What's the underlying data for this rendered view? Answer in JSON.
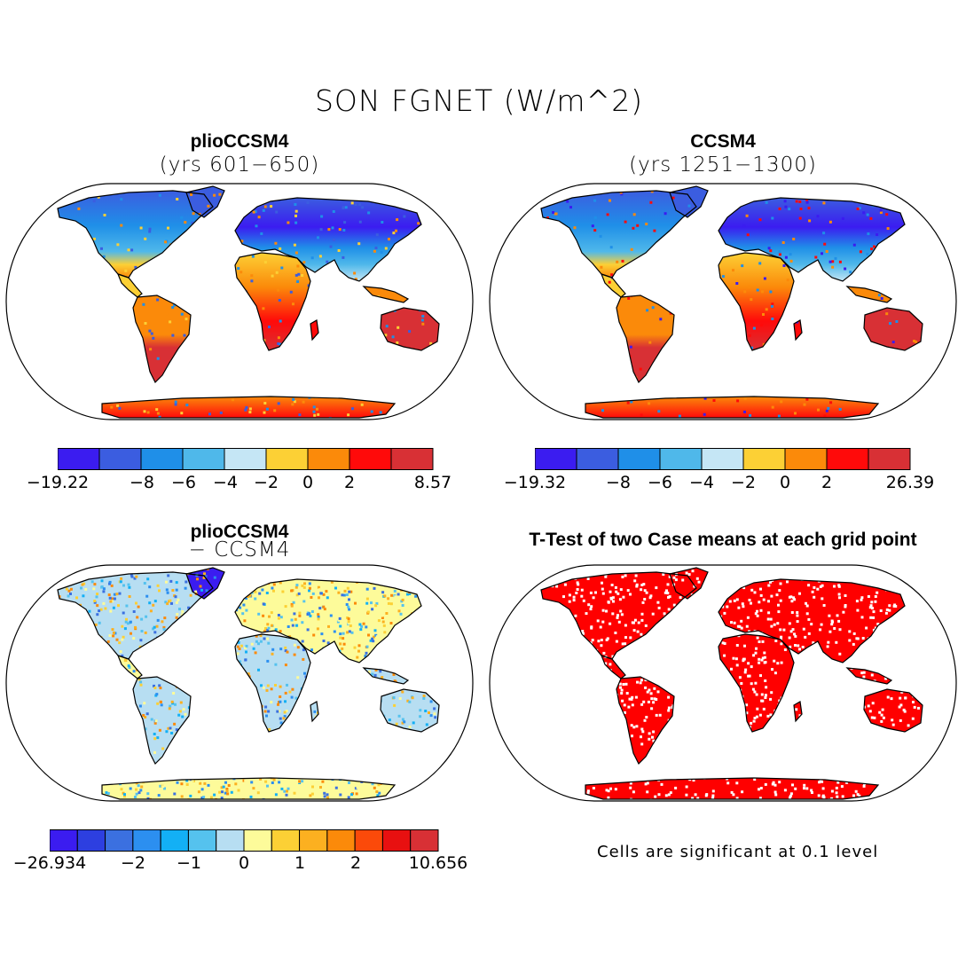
{
  "figure_title": "SON FGNET (W/m^2)",
  "colors": {
    "scale9": [
      "#3b1cf0",
      "#3b5de0",
      "#1f8fe8",
      "#4fb8ea",
      "#c5e6f5",
      "#fcd035",
      "#fb8a0a",
      "#ff0a0a",
      "#d83035"
    ],
    "scale14": [
      "#3b1cf0",
      "#2d3fe0",
      "#3b70e0",
      "#2c8ff0",
      "#13b0f5",
      "#55c2ee",
      "#b7def2",
      "#fdfb9a",
      "#fcd035",
      "#fcb020",
      "#fb8a0a",
      "#fb4a0a",
      "#e81010",
      "#d83035"
    ],
    "significant": "#ff0000",
    "coast": "#000000"
  },
  "panels": {
    "top_left": {
      "title": "plioCCSM4",
      "subtitle": "(yrs 601−650)",
      "colorbar": [
        "−19.22",
        "−8",
        "−6",
        "−4",
        "−2",
        "0",
        "2",
        "8.57"
      ]
    },
    "top_right": {
      "title": "CCSM4",
      "subtitle": "(yrs 1251−1300)",
      "colorbar": [
        "−19.32",
        "−8",
        "−6",
        "−4",
        "−2",
        "0",
        "2",
        "26.39"
      ]
    },
    "bottom_left": {
      "title": "plioCCSM4",
      "subtitle": "− CCSM4",
      "colorbar": [
        "−26.934",
        "−2",
        "−1",
        "0",
        "1",
        "2",
        "10.656"
      ]
    },
    "bottom_right": {
      "title": "T-Test of two Case means at each grid point",
      "note": "Cells are significant at 0.1 level"
    }
  }
}
